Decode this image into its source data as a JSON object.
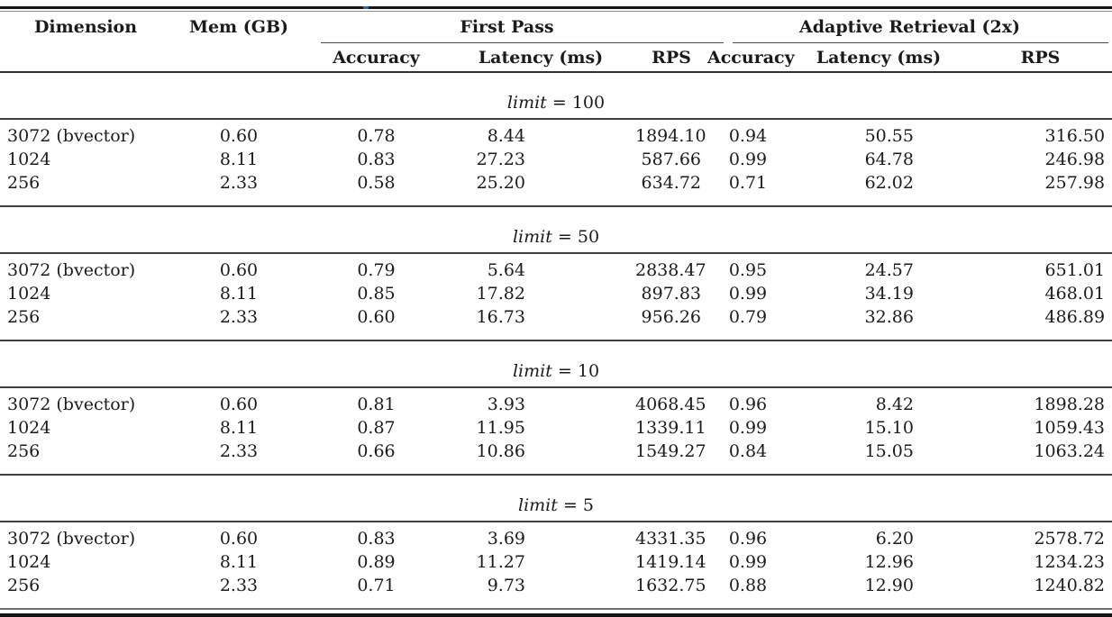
{
  "table": {
    "headers": {
      "dimension": "Dimension",
      "mem": "Mem (GB)",
      "group1": "First Pass",
      "group2": "Adaptive Retrieval (2x)",
      "sub": [
        "Accuracy",
        "Latency (ms)",
        "RPS",
        "Accuracy",
        "Latency (ms)",
        "RPS"
      ]
    },
    "sections": [
      {
        "title_word": "limit",
        "title_rest": "= 100",
        "rows": [
          [
            "3072 (bvector)",
            "0.60",
            "0.78",
            "8.44",
            "1894.10",
            "0.94",
            "50.55",
            "316.50"
          ],
          [
            "1024",
            "8.11",
            "0.83",
            "27.23",
            "587.66",
            "0.99",
            "64.78",
            "246.98"
          ],
          [
            "256",
            "2.33",
            "0.58",
            "25.20",
            "634.72",
            "0.71",
            "62.02",
            "257.98"
          ]
        ]
      },
      {
        "title_word": "limit",
        "title_rest": "= 50",
        "rows": [
          [
            "3072 (bvector)",
            "0.60",
            "0.79",
            "5.64",
            "2838.47",
            "0.95",
            "24.57",
            "651.01"
          ],
          [
            "1024",
            "8.11",
            "0.85",
            "17.82",
            "897.83",
            "0.99",
            "34.19",
            "468.01"
          ],
          [
            "256",
            "2.33",
            "0.60",
            "16.73",
            "956.26",
            "0.79",
            "32.86",
            "486.89"
          ]
        ]
      },
      {
        "title_word": "limit",
        "title_rest": "= 10",
        "rows": [
          [
            "3072 (bvector)",
            "0.60",
            "0.81",
            "3.93",
            "4068.45",
            "0.96",
            "8.42",
            "1898.28"
          ],
          [
            "1024",
            "8.11",
            "0.87",
            "11.95",
            "1339.11",
            "0.99",
            "15.10",
            "1059.43"
          ],
          [
            "256",
            "2.33",
            "0.66",
            "10.86",
            "1549.27",
            "0.84",
            "15.05",
            "1063.24"
          ]
        ]
      },
      {
        "title_word": "limit",
        "title_rest": "= 5",
        "rows": [
          [
            "3072 (bvector)",
            "0.60",
            "0.83",
            "3.69",
            "4331.35",
            "0.96",
            "6.20",
            "2578.72"
          ],
          [
            "1024",
            "8.11",
            "0.89",
            "11.27",
            "1419.14",
            "0.99",
            "12.96",
            "1234.23"
          ],
          [
            "256",
            "2.33",
            "0.71",
            "9.73",
            "1632.75",
            "0.88",
            "12.90",
            "1240.82"
          ]
        ]
      }
    ]
  },
  "colors": {
    "text": "#1b1b1b",
    "rule_thick": "#141414",
    "rule_thin": "#3f3f3f",
    "rule_light": "#8f8f8f",
    "background": "#ffffff",
    "artifact_blue": "#33679e"
  }
}
